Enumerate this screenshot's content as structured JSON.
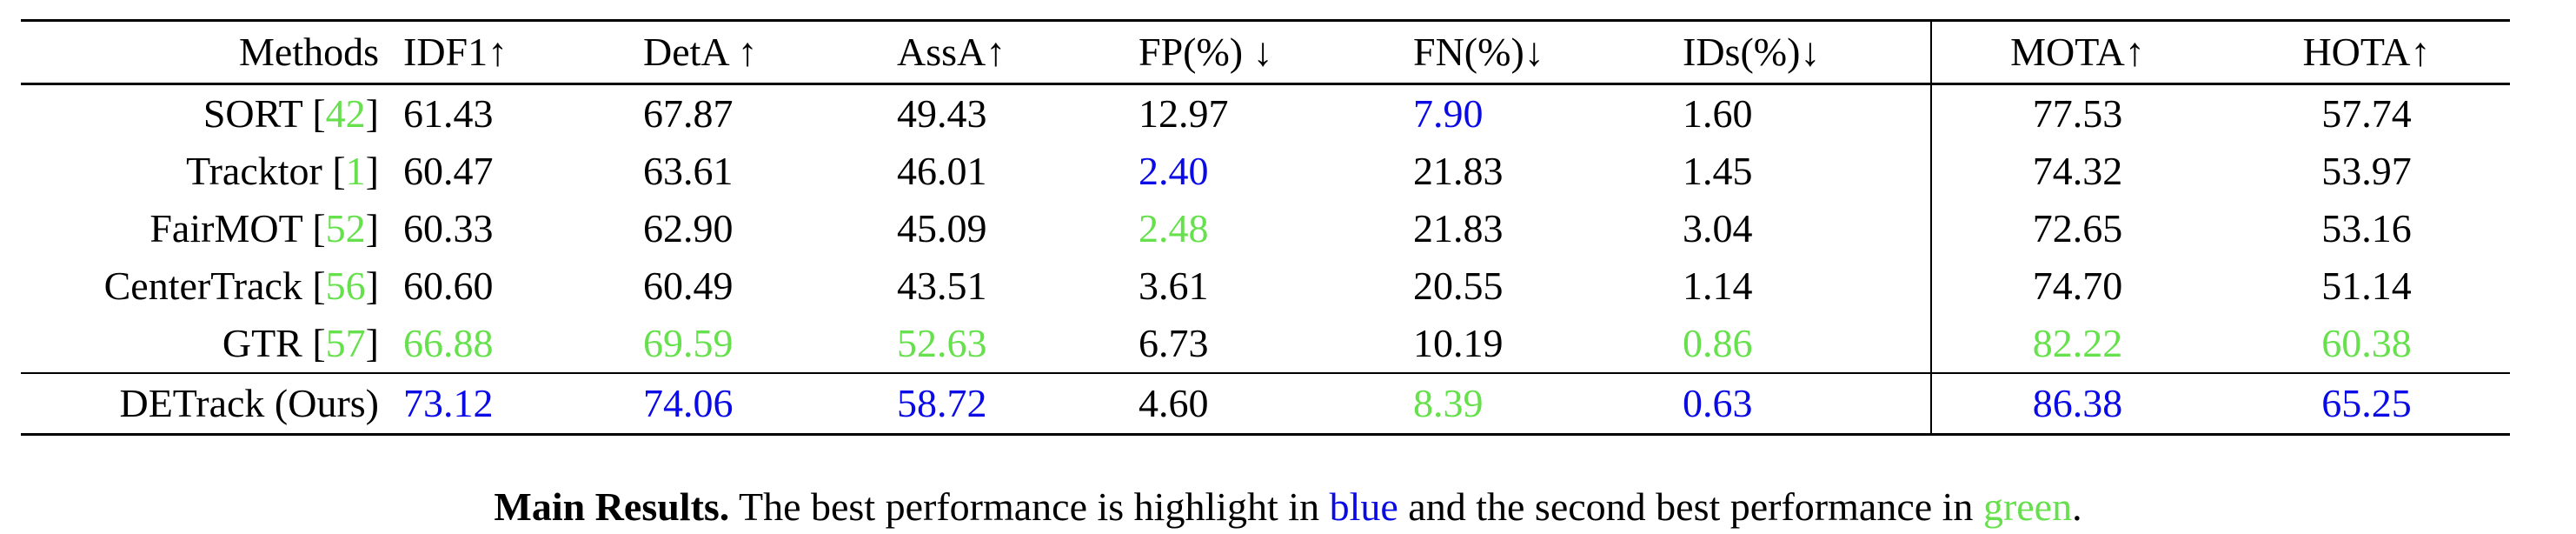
{
  "colors": {
    "best": "#0a0ae6",
    "second": "#66e04c",
    "citation": "#66e04c"
  },
  "table": {
    "headers": [
      "Methods",
      "IDF1↑",
      "DetA ↑",
      "AssA↑",
      "FP(%) ↓",
      "FN(%)↓",
      "IDs(%)↓",
      "MOTA↑",
      "HOTA↑"
    ],
    "rows": [
      {
        "method": "SORT",
        "citation": "42",
        "values": [
          "61.43",
          "67.87",
          "49.43",
          "12.97",
          "7.90",
          "1.60",
          "77.53",
          "57.74"
        ],
        "highlight": [
          "",
          "",
          "",
          "",
          "best",
          "",
          "",
          ""
        ]
      },
      {
        "method": "Tracktor",
        "citation": "1",
        "values": [
          "60.47",
          "63.61",
          "46.01",
          "2.40",
          "21.83",
          "1.45",
          "74.32",
          "53.97"
        ],
        "highlight": [
          "",
          "",
          "",
          "best",
          "",
          "",
          "",
          ""
        ]
      },
      {
        "method": "FairMOT",
        "citation": "52",
        "values": [
          "60.33",
          "62.90",
          "45.09",
          "2.48",
          "21.83",
          "3.04",
          "72.65",
          "53.16"
        ],
        "highlight": [
          "",
          "",
          "",
          "second",
          "",
          "",
          "",
          ""
        ]
      },
      {
        "method": "CenterTrack",
        "citation": "56",
        "values": [
          "60.60",
          "60.49",
          "43.51",
          "3.61",
          "20.55",
          "1.14",
          "74.70",
          "51.14"
        ],
        "highlight": [
          "",
          "",
          "",
          "",
          "",
          "",
          "",
          ""
        ]
      },
      {
        "method": "GTR",
        "citation": "57",
        "values": [
          "66.88",
          "69.59",
          "52.63",
          "6.73",
          "10.19",
          "0.86",
          "82.22",
          "60.38"
        ],
        "highlight": [
          "second",
          "second",
          "second",
          "",
          "",
          "second",
          "second",
          "second"
        ]
      },
      {
        "method": "DETrack (Ours)",
        "citation": "",
        "values": [
          "73.12",
          "74.06",
          "58.72",
          "4.60",
          "8.39",
          "0.63",
          "86.38",
          "65.25"
        ],
        "highlight": [
          "best",
          "best",
          "best",
          "",
          "second",
          "best",
          "best",
          "best"
        ]
      }
    ]
  },
  "caption": {
    "bold_lead": "Main Results.",
    "text_before_blue": " The best performance is highlight in ",
    "blue_word": "blue",
    "text_before_green": " and the second best performance in ",
    "green_word": "green",
    "text_end": "."
  }
}
